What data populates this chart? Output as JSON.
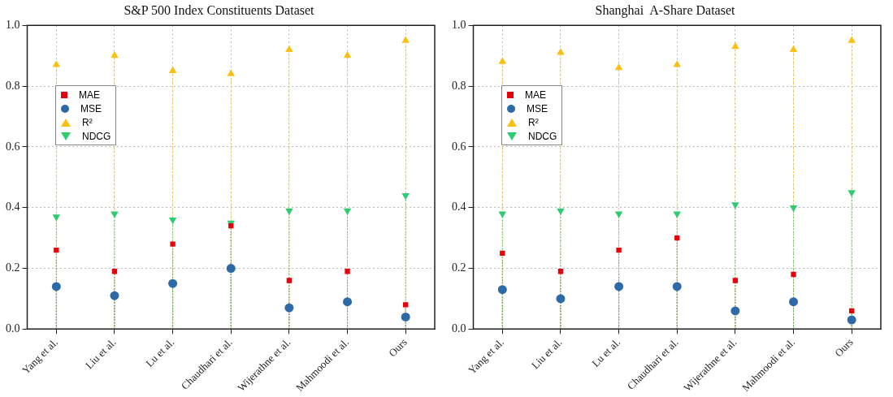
{
  "chart_data": [
    {
      "type": "lollipop",
      "title": "S&P 500 Index Constituents Dataset",
      "categories": [
        "Yang et al.",
        "Liu et al.",
        "Lu et al.",
        "Chaudhari et al.",
        "Wijerathne et al.",
        "Mahmoodi et al.",
        "Ours"
      ],
      "ylim": [
        0,
        1
      ],
      "yticks": [
        {
          "value": 0,
          "label": "0.0"
        },
        {
          "value": 0.2,
          "label": "0.2"
        },
        {
          "value": 0.4,
          "label": "0.4"
        },
        {
          "value": 0.6,
          "label": "0.6"
        },
        {
          "value": 0.8,
          "label": "0.8"
        },
        {
          "value": 1,
          "label": "1.0"
        }
      ],
      "grid": true,
      "legend": "left",
      "line_style": "dotted",
      "series": [
        {
          "name": "MAE",
          "color": "#e8000b",
          "marker": "square",
          "values": [
            0.26,
            0.19,
            0.28,
            0.34,
            0.16,
            0.19,
            0.08
          ]
        },
        {
          "name": "MSE",
          "color": "#2e6aa8",
          "marker": "circle",
          "values": [
            0.14,
            0.11,
            0.15,
            0.2,
            0.07,
            0.09,
            0.04
          ]
        },
        {
          "name": "R²",
          "color": "#fbbf0f",
          "marker": "triangle",
          "values": [
            0.87,
            0.9,
            0.85,
            0.84,
            0.92,
            0.9,
            0.95
          ]
        },
        {
          "name": "NDCG",
          "color": "#2ecc71",
          "marker": "triangle-down",
          "values": [
            0.37,
            0.38,
            0.36,
            0.35,
            0.39,
            0.39,
            0.44
          ]
        }
      ]
    },
    {
      "type": "lollipop",
      "title": "Shanghai  A-Share Dataset",
      "categories": [
        "Yang et al.",
        "Liu et al.",
        "Lu et al.",
        "Chaudhari et al.",
        "Wijerathne et al.",
        "Mahmoodi et al.",
        "Ours"
      ],
      "ylim": [
        0,
        1
      ],
      "yticks": [
        {
          "value": 0,
          "label": "0.0"
        },
        {
          "value": 0.2,
          "label": "0.2"
        },
        {
          "value": 0.4,
          "label": "0.4"
        },
        {
          "value": 0.6,
          "label": "0.6"
        },
        {
          "value": 0.8,
          "label": "0.8"
        },
        {
          "value": 1,
          "label": "1.0"
        }
      ],
      "grid": true,
      "legend": "left",
      "line_style": "dotted",
      "series": [
        {
          "name": "MAE",
          "color": "#e8000b",
          "marker": "square",
          "values": [
            0.25,
            0.19,
            0.26,
            0.3,
            0.16,
            0.18,
            0.06
          ]
        },
        {
          "name": "MSE",
          "color": "#2e6aa8",
          "marker": "circle",
          "values": [
            0.13,
            0.1,
            0.14,
            0.14,
            0.06,
            0.09,
            0.03
          ]
        },
        {
          "name": "R²",
          "color": "#fbbf0f",
          "marker": "triangle",
          "values": [
            0.88,
            0.91,
            0.86,
            0.87,
            0.93,
            0.92,
            0.95
          ]
        },
        {
          "name": "NDCG",
          "color": "#2ecc71",
          "marker": "triangle-down",
          "values": [
            0.38,
            0.39,
            0.38,
            0.38,
            0.41,
            0.4,
            0.45
          ]
        }
      ]
    }
  ]
}
